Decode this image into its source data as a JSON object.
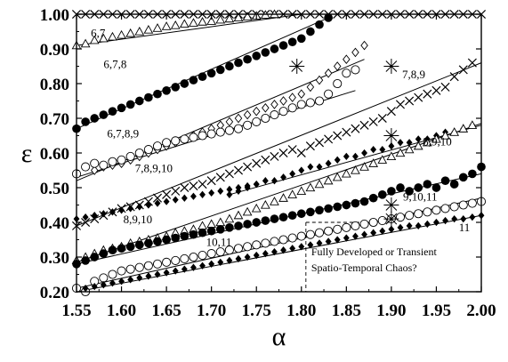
{
  "chart_data": {
    "type": "scatter",
    "title": "",
    "xlabel": "α",
    "ylabel": "ε",
    "xlim": [
      1.55,
      2.0
    ],
    "ylim": [
      0.2,
      1.0
    ],
    "grid": false,
    "x_ticks": [
      "1.55",
      "1.60",
      "1.65",
      "1.70",
      "1.75",
      "1.80",
      "1.85",
      "1.90",
      "1.95",
      "2.00"
    ],
    "y_ticks": [
      "0.20",
      "0.30",
      "0.40",
      "0.50",
      "0.60",
      "0.70",
      "0.80",
      "0.90",
      "1.00"
    ],
    "annotations": [
      {
        "text": "6,7",
        "x": 1.566,
        "y": 0.935
      },
      {
        "text": "6,7,8",
        "x": 1.58,
        "y": 0.845
      },
      {
        "text": "6,7,8,9",
        "x": 1.584,
        "y": 0.645
      },
      {
        "text": "7,8,9",
        "x": 1.912,
        "y": 0.815
      },
      {
        "text": "7,8,9,10",
        "x": 1.615,
        "y": 0.545
      },
      {
        "text": "8,9,10",
        "x": 1.935,
        "y": 0.622
      },
      {
        "text": "9,10,11",
        "x": 1.913,
        "y": 0.463
      },
      {
        "text": "8,9,10",
        "x": 1.602,
        "y": 0.398
      },
      {
        "text": "10,11",
        "x": 1.694,
        "y": 0.332
      },
      {
        "text": "11",
        "x": 1.975,
        "y": 0.375
      }
    ],
    "note": {
      "lines": [
        "Fully Developed or Transient",
        "Spatio-Temporal Chaos?"
      ],
      "x": 1.805,
      "y": 0.4
    },
    "series": [
      {
        "marker": "x",
        "color": "#000000",
        "x": [
          1.55,
          1.56,
          1.57,
          1.58,
          1.59,
          1.6,
          1.61,
          1.62,
          1.63,
          1.64,
          1.65,
          1.66,
          1.67,
          1.68,
          1.69,
          1.7,
          1.71,
          1.72,
          1.73,
          1.74,
          1.75,
          1.76,
          1.77,
          1.78,
          1.79,
          1.8,
          1.81,
          1.82,
          1.83,
          1.84,
          1.85,
          1.86,
          1.87,
          1.88,
          1.89,
          1.9,
          1.91,
          1.92,
          1.93,
          1.94,
          1.95,
          1.96,
          1.97,
          1.98,
          1.99,
          2.0
        ],
        "y": [
          1.0,
          1.0,
          1.0,
          1.0,
          1.0,
          1.0,
          1.0,
          1.0,
          1.0,
          1.0,
          1.0,
          1.0,
          1.0,
          1.0,
          1.0,
          1.0,
          1.0,
          1.0,
          1.0,
          1.0,
          1.0,
          1.0,
          1.0,
          1.0,
          1.0,
          1.0,
          1.0,
          1.0,
          1.0,
          1.0,
          1.0,
          1.0,
          1.0,
          1.0,
          1.0,
          1.0,
          1.0,
          1.0,
          1.0,
          1.0,
          1.0,
          1.0,
          1.0,
          1.0,
          1.0,
          1.0
        ]
      },
      {
        "marker": "triangle-open",
        "color": "#000000",
        "x": [
          1.55,
          1.56,
          1.57,
          1.58,
          1.59,
          1.6,
          1.61,
          1.62,
          1.63,
          1.64,
          1.65,
          1.66,
          1.67,
          1.68,
          1.69,
          1.7,
          1.71,
          1.72,
          1.73,
          1.74,
          1.75,
          1.76,
          1.77
        ],
        "y": [
          0.91,
          0.915,
          0.925,
          0.93,
          0.935,
          0.94,
          0.945,
          0.95,
          0.955,
          0.96,
          0.965,
          0.968,
          0.972,
          0.975,
          0.978,
          0.98,
          0.984,
          0.987,
          0.99,
          0.993,
          0.995,
          0.998,
          1.0
        ]
      },
      {
        "marker": "circle-filled",
        "color": "#000000",
        "x": [
          1.55,
          1.56,
          1.57,
          1.58,
          1.59,
          1.6,
          1.61,
          1.62,
          1.63,
          1.64,
          1.65,
          1.66,
          1.67,
          1.68,
          1.69,
          1.7,
          1.71,
          1.72,
          1.73,
          1.74,
          1.75,
          1.76,
          1.77,
          1.78,
          1.79,
          1.8,
          1.81,
          1.82,
          1.83
        ],
        "y": [
          0.67,
          0.69,
          0.7,
          0.71,
          0.72,
          0.73,
          0.74,
          0.75,
          0.76,
          0.77,
          0.78,
          0.79,
          0.8,
          0.81,
          0.82,
          0.83,
          0.84,
          0.85,
          0.86,
          0.87,
          0.88,
          0.89,
          0.9,
          0.91,
          0.92,
          0.93,
          0.95,
          0.97,
          0.99
        ]
      },
      {
        "marker": "diamond-open",
        "color": "#000000",
        "x": [
          1.57,
          1.58,
          1.59,
          1.6,
          1.61,
          1.62,
          1.63,
          1.64,
          1.65,
          1.66,
          1.67,
          1.68,
          1.69,
          1.7,
          1.71,
          1.72,
          1.73,
          1.74,
          1.75,
          1.76,
          1.77,
          1.78,
          1.79,
          1.8,
          1.81,
          1.82,
          1.83,
          1.84,
          1.85,
          1.86,
          1.87
        ],
        "y": [
          0.55,
          0.56,
          0.565,
          0.57,
          0.58,
          0.59,
          0.6,
          0.61,
          0.62,
          0.63,
          0.64,
          0.65,
          0.66,
          0.67,
          0.68,
          0.69,
          0.7,
          0.71,
          0.72,
          0.73,
          0.74,
          0.75,
          0.76,
          0.77,
          0.79,
          0.81,
          0.83,
          0.85,
          0.87,
          0.89,
          0.91
        ]
      },
      {
        "marker": "circle-open",
        "color": "#000000",
        "x": [
          1.55,
          1.56,
          1.57,
          1.58,
          1.59,
          1.6,
          1.61,
          1.62,
          1.63,
          1.64,
          1.65,
          1.66,
          1.67,
          1.68,
          1.69,
          1.7,
          1.71,
          1.72,
          1.73,
          1.74,
          1.75,
          1.76,
          1.77,
          1.78,
          1.79,
          1.8,
          1.81,
          1.82,
          1.83,
          1.84,
          1.85,
          1.86
        ],
        "y": [
          0.54,
          0.56,
          0.57,
          0.565,
          0.575,
          0.58,
          0.59,
          0.6,
          0.61,
          0.62,
          0.63,
          0.635,
          0.64,
          0.645,
          0.65,
          0.655,
          0.66,
          0.665,
          0.67,
          0.68,
          0.69,
          0.7,
          0.71,
          0.72,
          0.73,
          0.74,
          0.745,
          0.75,
          0.77,
          0.8,
          0.83,
          0.84
        ]
      },
      {
        "marker": "x",
        "color": "#000000",
        "x": [
          1.55,
          1.56,
          1.57,
          1.58,
          1.59,
          1.6,
          1.61,
          1.62,
          1.63,
          1.64,
          1.65,
          1.66,
          1.67,
          1.68,
          1.69,
          1.7,
          1.71,
          1.72,
          1.73,
          1.74,
          1.75,
          1.76,
          1.77,
          1.78,
          1.79,
          1.8,
          1.81,
          1.82,
          1.83,
          1.84,
          1.85,
          1.86,
          1.87,
          1.88,
          1.89,
          1.9,
          1.91,
          1.92,
          1.93,
          1.94,
          1.95,
          1.96,
          1.97,
          1.98,
          1.99
        ],
        "y": [
          0.39,
          0.4,
          0.41,
          0.42,
          0.43,
          0.44,
          0.445,
          0.45,
          0.46,
          0.47,
          0.48,
          0.49,
          0.5,
          0.505,
          0.51,
          0.52,
          0.53,
          0.54,
          0.55,
          0.56,
          0.57,
          0.58,
          0.59,
          0.6,
          0.61,
          0.6,
          0.62,
          0.63,
          0.64,
          0.65,
          0.66,
          0.67,
          0.68,
          0.69,
          0.7,
          0.72,
          0.74,
          0.75,
          0.76,
          0.77,
          0.78,
          0.79,
          0.82,
          0.84,
          0.86
        ]
      },
      {
        "marker": "diamond-filled",
        "color": "#000000",
        "x": [
          1.72,
          1.73,
          1.74,
          1.75,
          1.76,
          1.77,
          1.78,
          1.79,
          1.8,
          1.81,
          1.82,
          1.83,
          1.84,
          1.85,
          1.86,
          1.87,
          1.88,
          1.89,
          1.9,
          1.91,
          1.92,
          1.93,
          1.94,
          1.95,
          1.96,
          1.97,
          1.98,
          1.99
        ],
        "y": [
          0.48,
          0.49,
          0.5,
          0.51,
          0.52,
          0.52,
          0.53,
          0.54,
          0.55,
          0.56,
          0.56,
          0.57,
          0.58,
          0.59,
          0.59,
          0.6,
          0.61,
          0.61,
          0.62,
          0.63,
          0.63,
          0.64,
          0.64,
          0.65,
          0.66,
          0.66,
          0.67,
          0.68
        ]
      },
      {
        "marker": "triangle-open",
        "color": "#000000",
        "x": [
          1.55,
          1.56,
          1.57,
          1.58,
          1.59,
          1.6,
          1.61,
          1.62,
          1.63,
          1.64,
          1.65,
          1.66,
          1.67,
          1.68,
          1.69,
          1.7,
          1.71,
          1.72,
          1.73,
          1.74,
          1.75,
          1.76,
          1.77,
          1.78,
          1.79,
          1.8,
          1.81,
          1.82,
          1.83,
          1.84,
          1.85,
          1.86,
          1.87,
          1.88,
          1.89,
          1.9,
          1.91,
          1.92,
          1.93,
          1.94,
          1.95,
          1.96,
          1.97,
          1.98,
          1.99
        ],
        "y": [
          0.29,
          0.3,
          0.31,
          0.32,
          0.325,
          0.33,
          0.34,
          0.345,
          0.35,
          0.355,
          0.36,
          0.37,
          0.375,
          0.38,
          0.39,
          0.395,
          0.4,
          0.41,
          0.42,
          0.43,
          0.44,
          0.45,
          0.46,
          0.47,
          0.48,
          0.49,
          0.5,
          0.51,
          0.52,
          0.53,
          0.54,
          0.55,
          0.56,
          0.57,
          0.58,
          0.59,
          0.6,
          0.61,
          0.62,
          0.63,
          0.64,
          0.65,
          0.66,
          0.67,
          0.68
        ]
      },
      {
        "marker": "diamond-filled",
        "color": "#000000",
        "x": [
          1.55,
          1.56,
          1.57,
          1.58,
          1.59,
          1.6,
          1.61,
          1.62,
          1.63,
          1.64,
          1.65,
          1.66,
          1.67,
          1.68,
          1.69,
          1.7,
          1.71,
          1.72,
          1.73,
          1.74,
          1.75
        ],
        "y": [
          0.41,
          0.415,
          0.42,
          0.425,
          0.43,
          0.435,
          0.44,
          0.445,
          0.45,
          0.455,
          0.46,
          0.465,
          0.47,
          0.475,
          0.48,
          0.485,
          0.49,
          0.495,
          0.5,
          0.505,
          0.51
        ]
      },
      {
        "marker": "circle-filled",
        "color": "#000000",
        "x": [
          1.55,
          1.56,
          1.57,
          1.58,
          1.59,
          1.6,
          1.61,
          1.62,
          1.63,
          1.64,
          1.65,
          1.66,
          1.67,
          1.68,
          1.69,
          1.7,
          1.71,
          1.72,
          1.73,
          1.74,
          1.75,
          1.76,
          1.77,
          1.78,
          1.79,
          1.8,
          1.81,
          1.82,
          1.83,
          1.84,
          1.85,
          1.86,
          1.87,
          1.88,
          1.89,
          1.9,
          1.91,
          1.92,
          1.93,
          1.94,
          1.95,
          1.96,
          1.97,
          1.98,
          1.99,
          2.0
        ],
        "y": [
          0.28,
          0.29,
          0.3,
          0.31,
          0.32,
          0.325,
          0.33,
          0.335,
          0.34,
          0.345,
          0.35,
          0.355,
          0.36,
          0.365,
          0.37,
          0.375,
          0.38,
          0.385,
          0.39,
          0.395,
          0.4,
          0.405,
          0.41,
          0.415,
          0.42,
          0.425,
          0.43,
          0.435,
          0.44,
          0.445,
          0.45,
          0.455,
          0.46,
          0.47,
          0.48,
          0.49,
          0.5,
          0.49,
          0.5,
          0.51,
          0.5,
          0.52,
          0.51,
          0.53,
          0.54,
          0.56
        ]
      },
      {
        "marker": "circle-open",
        "color": "#000000",
        "x": [
          1.55,
          1.56,
          1.57,
          1.58,
          1.59,
          1.6,
          1.61,
          1.62,
          1.63,
          1.64,
          1.65,
          1.66,
          1.67,
          1.68,
          1.69,
          1.7,
          1.71,
          1.72,
          1.73,
          1.74,
          1.75,
          1.76,
          1.77,
          1.78,
          1.79,
          1.8,
          1.81,
          1.82,
          1.83,
          1.84,
          1.85,
          1.86,
          1.87,
          1.88,
          1.89,
          1.9,
          1.91,
          1.92,
          1.93,
          1.94,
          1.95,
          1.96,
          1.97,
          1.98,
          1.99,
          2.0
        ],
        "y": [
          0.21,
          0.2,
          0.23,
          0.24,
          0.25,
          0.26,
          0.265,
          0.27,
          0.275,
          0.28,
          0.285,
          0.29,
          0.295,
          0.3,
          0.305,
          0.31,
          0.315,
          0.32,
          0.325,
          0.33,
          0.335,
          0.34,
          0.345,
          0.35,
          0.355,
          0.36,
          0.365,
          0.37,
          0.375,
          0.38,
          0.385,
          0.39,
          0.395,
          0.4,
          0.405,
          0.41,
          0.415,
          0.42,
          0.425,
          0.43,
          0.435,
          0.44,
          0.445,
          0.45,
          0.455,
          0.46
        ]
      },
      {
        "marker": "diamond-filled",
        "color": "#000000",
        "x": [
          1.56,
          1.57,
          1.58,
          1.59,
          1.6,
          1.61,
          1.62,
          1.63,
          1.64,
          1.65,
          1.66,
          1.67,
          1.68,
          1.69,
          1.7,
          1.71,
          1.72,
          1.73,
          1.74,
          1.75,
          1.76,
          1.77,
          1.78,
          1.79,
          1.8,
          1.81,
          1.82,
          1.83,
          1.84,
          1.85,
          1.86,
          1.87,
          1.88,
          1.89,
          1.9,
          1.91,
          1.92,
          1.93,
          1.94,
          1.95,
          1.96,
          1.97,
          1.98,
          1.99,
          2.0
        ],
        "y": [
          0.21,
          0.215,
          0.22,
          0.225,
          0.23,
          0.235,
          0.24,
          0.245,
          0.25,
          0.255,
          0.26,
          0.265,
          0.27,
          0.275,
          0.28,
          0.285,
          0.29,
          0.295,
          0.3,
          0.305,
          0.31,
          0.315,
          0.32,
          0.325,
          0.33,
          0.335,
          0.34,
          0.345,
          0.35,
          0.355,
          0.36,
          0.365,
          0.37,
          0.375,
          0.38,
          0.385,
          0.39,
          0.39,
          0.395,
          0.4,
          0.405,
          0.41,
          0.41,
          0.415,
          0.42
        ]
      },
      {
        "marker": "star",
        "color": "#000000",
        "x": [
          1.795,
          1.9,
          1.9,
          1.9,
          1.9
        ],
        "y": [
          0.85,
          0.85,
          0.65,
          0.45,
          0.41
        ]
      }
    ],
    "fit_lines": [
      {
        "x": [
          1.55,
          1.8
        ],
        "y": [
          0.91,
          1.0
        ]
      },
      {
        "x": [
          1.55,
          1.83
        ],
        "y": [
          0.67,
          0.99
        ]
      },
      {
        "x": [
          1.55,
          1.87
        ],
        "y": [
          0.52,
          0.87
        ]
      },
      {
        "x": [
          1.55,
          1.86
        ],
        "y": [
          0.53,
          0.78
        ]
      },
      {
        "x": [
          1.55,
          2.0
        ],
        "y": [
          0.39,
          0.86
        ]
      },
      {
        "x": [
          1.72,
          2.0
        ],
        "y": [
          0.48,
          0.68
        ]
      },
      {
        "x": [
          1.55,
          2.0
        ],
        "y": [
          0.285,
          0.685
        ]
      },
      {
        "x": [
          1.55,
          2.0
        ],
        "y": [
          0.28,
          0.54
        ]
      },
      {
        "x": [
          1.55,
          2.0
        ],
        "y": [
          0.21,
          0.47
        ]
      },
      {
        "x": [
          1.55,
          2.0
        ],
        "y": [
          0.2,
          0.42
        ]
      }
    ]
  }
}
